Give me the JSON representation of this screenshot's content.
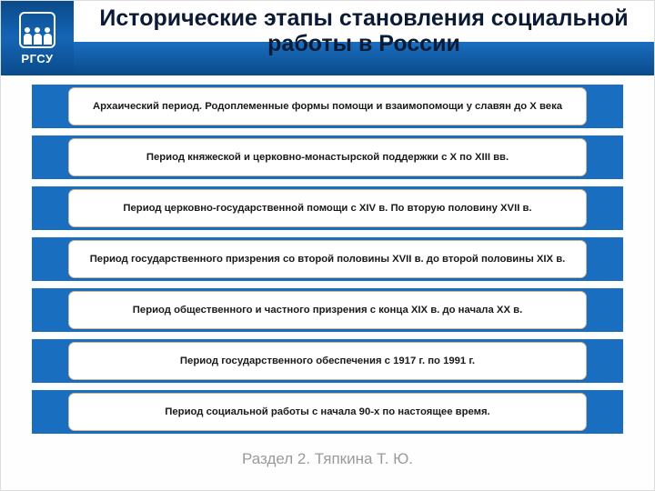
{
  "logo": {
    "abbr": "РГСУ"
  },
  "title": "Исторические этапы становления социальной работы в России",
  "stages": [
    "Архаический период. Родоплеменные формы помощи и взаимопомощи у славян до X века",
    "Период княжеской и церковно-монастырской поддержки с X по XIII вв.",
    "Период церковно-государственной помощи с XIV в. По вторую половину XVII в.",
    "Период государственного призрения со второй половины XVII в. до второй половины XIX в.",
    "Период общественного и частного призрения с конца XIX в. до начала XX в.",
    "Период государственного обеспечения с 1917 г. по 1991 г.",
    "Период социальной работы с начала 90-х по настоящее время."
  ],
  "footer": "Раздел 2. Тяпкина Т. Ю.",
  "colors": {
    "header_blue_dark": "#0a4a8a",
    "header_blue_light": "#1a6ec0",
    "box_border": "#c9b894",
    "title_text": "#0b1a35",
    "footer_text": "#9a9a9a",
    "background": "#fefefe"
  }
}
